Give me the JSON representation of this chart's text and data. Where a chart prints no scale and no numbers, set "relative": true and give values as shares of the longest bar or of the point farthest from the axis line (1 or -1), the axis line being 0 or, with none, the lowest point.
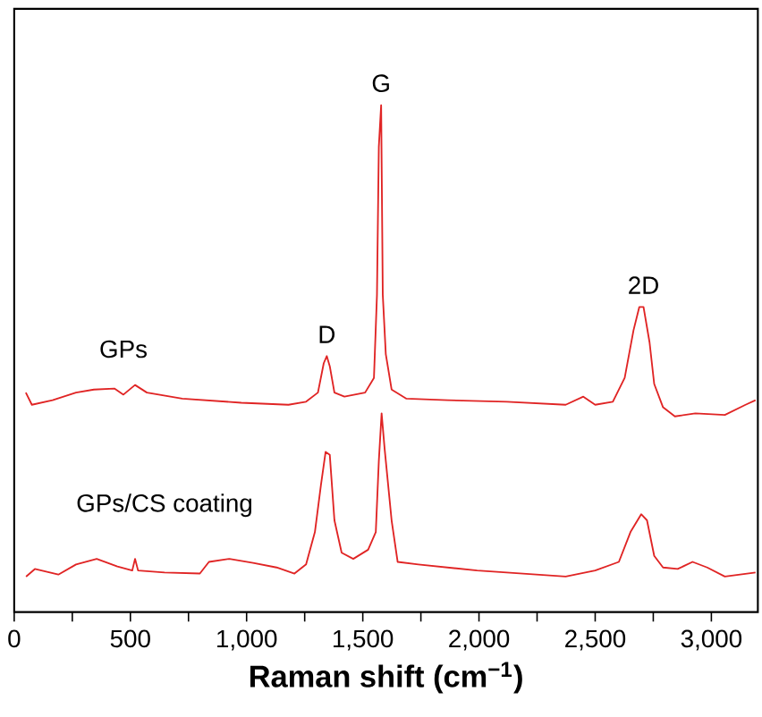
{
  "chart_data": {
    "type": "line",
    "relative": true,
    "xlabel": "Raman shift (cm$^{−1}$)",
    "xlim": [
      0,
      3200
    ],
    "xticks": [
      0,
      {
        "value": 250,
        "label": null
      },
      500,
      {
        "value": 750,
        "label": null
      },
      {
        "value": 1000,
        "label": "1,000"
      },
      {
        "value": 1250,
        "label": null
      },
      {
        "value": 1500,
        "label": "1,500"
      },
      {
        "value": 1750,
        "label": null
      },
      {
        "value": 2000,
        "label": "2,000"
      },
      {
        "value": 2250,
        "label": null
      },
      {
        "value": 2500,
        "label": "2,500"
      },
      {
        "value": 2750,
        "label": null
      },
      {
        "value": 3000,
        "label": "3,000"
      }
    ],
    "series": [
      {
        "name": "GPs",
        "color": "#e02424",
        "x": [
          50,
          76,
          165,
          266,
          343,
          431,
          470,
          520,
          571,
          723,
          977,
          1180,
          1256,
          1307,
          1332,
          1345,
          1358,
          1378,
          1421,
          1510,
          1548,
          1561,
          1569,
          1579,
          1586,
          1599,
          1624,
          1688,
          1865,
          2119,
          2373,
          2449,
          2500,
          2576,
          2627,
          2665,
          2690,
          2708,
          2734,
          2754,
          2792,
          2843,
          2931,
          3058,
          3147,
          3190
        ],
        "values": [
          0.433,
          0.409,
          0.418,
          0.433,
          0.439,
          0.441,
          0.429,
          0.448,
          0.433,
          0.421,
          0.413,
          0.409,
          0.415,
          0.433,
          0.491,
          0.505,
          0.485,
          0.433,
          0.425,
          0.433,
          0.462,
          0.626,
          0.918,
          1.0,
          0.626,
          0.509,
          0.439,
          0.421,
          0.418,
          0.415,
          0.409,
          0.425,
          0.409,
          0.415,
          0.462,
          0.556,
          0.602,
          0.602,
          0.532,
          0.45,
          0.404,
          0.386,
          0.392,
          0.389,
          0.409,
          0.418
        ]
      },
      {
        "name": "GPs/CS coating",
        "color": "#e02424",
        "x": [
          51,
          89,
          190,
          266,
          355,
          444,
          508,
          520,
          533,
          647,
          799,
          838,
          926,
          1028,
          1129,
          1206,
          1256,
          1294,
          1320,
          1340,
          1358,
          1378,
          1409,
          1459,
          1523,
          1556,
          1569,
          1581,
          1594,
          1624,
          1650,
          1739,
          1992,
          2246,
          2373,
          2500,
          2602,
          2652,
          2698,
          2723,
          2754,
          2792,
          2855,
          2919,
          2982,
          3058,
          3190
        ],
        "values": [
          0.07,
          0.085,
          0.074,
          0.094,
          0.105,
          0.09,
          0.082,
          0.105,
          0.082,
          0.078,
          0.076,
          0.099,
          0.105,
          0.097,
          0.088,
          0.076,
          0.094,
          0.158,
          0.251,
          0.316,
          0.31,
          0.181,
          0.117,
          0.105,
          0.123,
          0.158,
          0.298,
          0.392,
          0.322,
          0.181,
          0.099,
          0.094,
          0.082,
          0.074,
          0.07,
          0.082,
          0.099,
          0.158,
          0.193,
          0.181,
          0.111,
          0.088,
          0.085,
          0.099,
          0.088,
          0.07,
          0.078
        ]
      }
    ],
    "annotations": [
      {
        "text": "D",
        "x": 1345,
        "y": 0.505
      },
      {
        "text": "G",
        "x": 1579,
        "y": 1.0
      },
      {
        "text": "2D",
        "x": 2708,
        "y": 0.602
      }
    ]
  }
}
